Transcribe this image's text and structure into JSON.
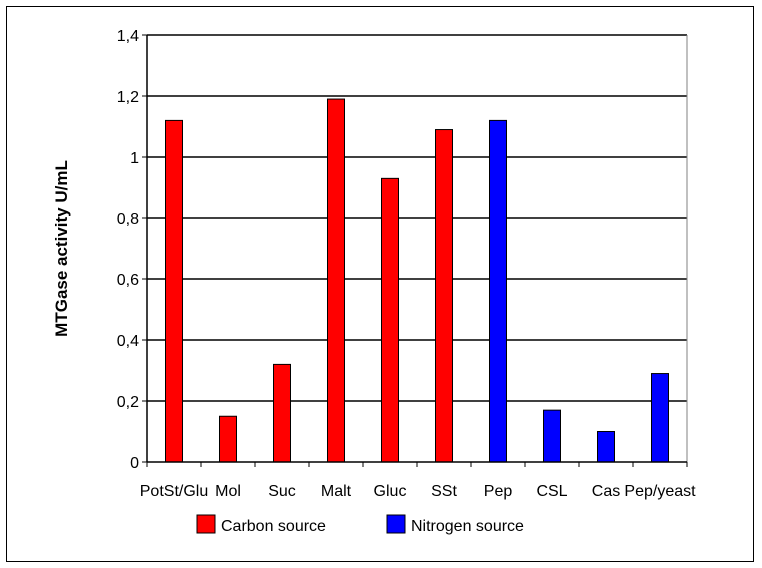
{
  "chart_data": {
    "type": "bar",
    "categories": [
      "PotSt/Glu",
      "Mol",
      "Suc",
      "Malt",
      "Gluc",
      "SSt",
      "Pep",
      "CSL",
      "Cas",
      "Pep/yeast"
    ],
    "values": [
      1.12,
      0.15,
      0.32,
      1.19,
      0.93,
      1.09,
      1.12,
      0.17,
      0.1,
      0.29
    ],
    "groups": [
      "Carbon source",
      "Carbon source",
      "Carbon source",
      "Carbon source",
      "Carbon source",
      "Carbon source",
      "Nitrogen source",
      "Nitrogen source",
      "Nitrogen source",
      "Nitrogen source"
    ],
    "ylabel": "MTGase activity U/mL",
    "xlabel": "",
    "ylim": [
      0,
      1.4
    ],
    "yticks": [
      "0",
      "0,2",
      "0,4",
      "0,6",
      "0,8",
      "1",
      "1,2",
      "1,4"
    ],
    "grid": true,
    "legend_position": "bottom",
    "legend": [
      {
        "name": "Carbon source",
        "color": "#ff0000"
      },
      {
        "name": "Nitrogen source",
        "color": "#0000ff"
      }
    ]
  }
}
